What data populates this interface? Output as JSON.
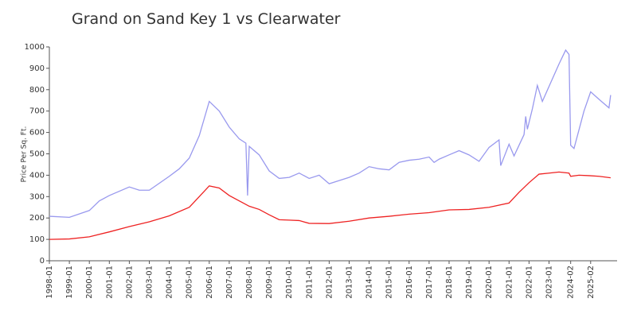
{
  "chart_data": {
    "type": "line",
    "title": "Grand on Sand Key 1 vs Clearwater",
    "y_label": "Price Per Sq. Ft.",
    "xlim": [
      "1998-01",
      "2026-03"
    ],
    "xticks": [
      "1998-01",
      "1999-01",
      "2000-01",
      "2001-01",
      "2002-01",
      "2003-01",
      "2004-01",
      "2005-01",
      "2006-01",
      "2007-01",
      "2008-01",
      "2009-01",
      "2010-01",
      "2011-01",
      "2012-01",
      "2013-01",
      "2014-01",
      "2015-01",
      "2016-01",
      "2017-01",
      "2018-01",
      "2019-01",
      "2020-01",
      "2021-01",
      "2022-01",
      "2023-01",
      "2024-02",
      "2025-02"
    ],
    "ylim": [
      0,
      1000
    ],
    "yticks": [
      0,
      100,
      200,
      300,
      400,
      500,
      600,
      700,
      800,
      900,
      1000
    ],
    "series": [
      {
        "color": "#9999ee",
        "x": [
          "1998-01",
          "1999-01",
          "2000-01",
          "2000-07",
          "2001-01",
          "2002-01",
          "2002-07",
          "2003-01",
          "2004-01",
          "2004-07",
          "2005-01",
          "2005-07",
          "2006-01",
          "2006-07",
          "2007-01",
          "2007-07",
          "2007-11",
          "2007-12",
          "2008-01",
          "2008-07",
          "2009-01",
          "2009-07",
          "2010-01",
          "2010-07",
          "2011-01",
          "2011-07",
          "2012-01",
          "2012-07",
          "2013-01",
          "2013-07",
          "2014-01",
          "2014-07",
          "2015-01",
          "2015-07",
          "2016-01",
          "2016-07",
          "2017-01",
          "2017-04",
          "2017-07",
          "2018-01",
          "2018-07",
          "2019-01",
          "2019-07",
          "2020-01",
          "2020-07",
          "2020-08",
          "2021-01",
          "2021-04",
          "2021-10",
          "2021-11",
          "2021-12",
          "2022-03",
          "2022-06",
          "2022-09",
          "2023-01",
          "2023-07",
          "2023-11",
          "2024-01",
          "2024-02",
          "2024-04",
          "2024-10",
          "2025-02",
          "2025-07",
          "2026-01",
          "2026-02"
        ],
        "values": [
          208,
          203,
          235,
          280,
          305,
          345,
          330,
          330,
          395,
          430,
          480,
          585,
          745,
          700,
          625,
          570,
          550,
          305,
          535,
          495,
          420,
          385,
          390,
          410,
          385,
          400,
          360,
          375,
          390,
          410,
          440,
          430,
          425,
          460,
          470,
          475,
          485,
          460,
          475,
          495,
          515,
          495,
          465,
          530,
          565,
          445,
          545,
          490,
          590,
          675,
          615,
          710,
          820,
          745,
          815,
          920,
          985,
          965,
          540,
          525,
          700,
          790,
          755,
          715,
          775
        ]
      },
      {
        "color": "#ee2222",
        "x": [
          "1998-01",
          "1999-01",
          "2000-01",
          "2001-01",
          "2002-01",
          "2003-01",
          "2004-01",
          "2005-01",
          "2005-07",
          "2006-01",
          "2006-07",
          "2007-01",
          "2007-07",
          "2008-01",
          "2008-07",
          "2009-01",
          "2009-07",
          "2010-01",
          "2010-07",
          "2011-01",
          "2012-01",
          "2013-01",
          "2014-01",
          "2015-01",
          "2016-01",
          "2017-01",
          "2018-01",
          "2019-01",
          "2020-01",
          "2021-01",
          "2021-07",
          "2022-01",
          "2022-07",
          "2023-01",
          "2023-07",
          "2024-01",
          "2024-02",
          "2024-07",
          "2025-01",
          "2025-07",
          "2026-02"
        ],
        "values": [
          100,
          102,
          112,
          135,
          160,
          182,
          210,
          250,
          300,
          350,
          340,
          305,
          280,
          255,
          240,
          215,
          192,
          190,
          188,
          175,
          174,
          185,
          200,
          208,
          218,
          225,
          238,
          240,
          250,
          270,
          320,
          365,
          405,
          410,
          415,
          410,
          395,
          400,
          398,
          395,
          388
        ]
      }
    ]
  }
}
